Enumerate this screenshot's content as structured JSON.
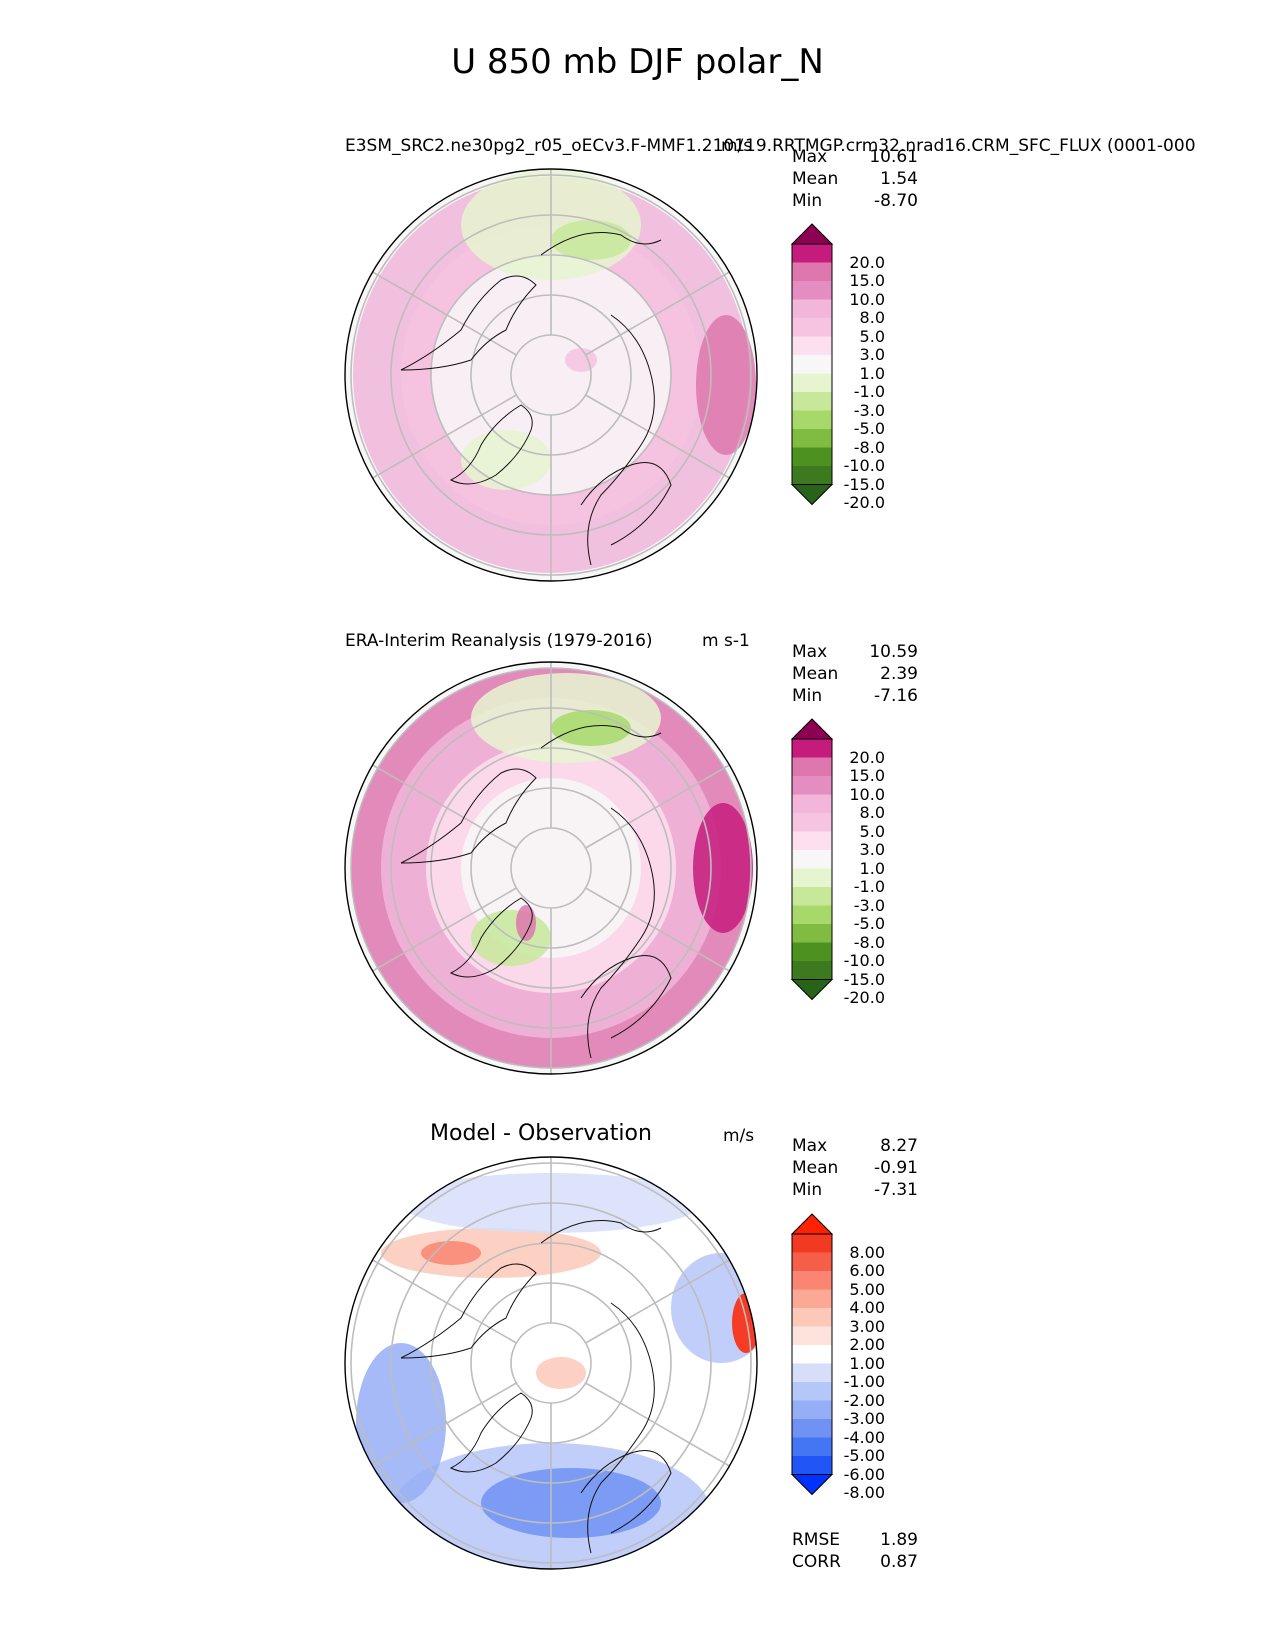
{
  "figure_title": "U 850 mb DJF polar_N",
  "panels": [
    {
      "name": "test",
      "title_left": "E3SM_SRC2.ne30pg2_r05_oECv3.F-MMF1.210119.RRTMGP.crm32.nrad16.CRM_SFC_FLUX (0001-000",
      "title_right": "m/s",
      "stats": [
        [
          "Max",
          "10.61"
        ],
        [
          "Mean",
          "1.54"
        ],
        [
          "Min",
          "-8.70"
        ]
      ],
      "colorbar_labels": [
        "20.0",
        "15.0",
        "10.0",
        "8.0",
        "5.0",
        "3.0",
        "1.0",
        "-1.0",
        "-3.0",
        "-5.0",
        "-8.0",
        "-10.0",
        "-15.0",
        "-20.0"
      ],
      "colorbar_colors": [
        "#8e0152",
        "#c51b7d",
        "#de77ae",
        "#f1b6da",
        "#fde0ef",
        "#f7f7f7",
        "#e6f5d0",
        "#b8e186",
        "#7fbc41",
        "#4d9221",
        "#276419"
      ]
    },
    {
      "name": "reference",
      "title_left": "ERA-Interim Reanalysis (1979-2016)",
      "title_right": "m s-1",
      "stats": [
        [
          "Max",
          "10.59"
        ],
        [
          "Mean",
          "2.39"
        ],
        [
          "Min",
          "-7.16"
        ]
      ],
      "colorbar_labels": [
        "20.0",
        "15.0",
        "10.0",
        "8.0",
        "5.0",
        "3.0",
        "1.0",
        "-1.0",
        "-3.0",
        "-5.0",
        "-8.0",
        "-10.0",
        "-15.0",
        "-20.0"
      ]
    },
    {
      "name": "difference",
      "title_center": "Model - Observation",
      "title_right": "m/s",
      "stats": [
        [
          "Max",
          "8.27"
        ],
        [
          "Mean",
          "-0.91"
        ],
        [
          "Min",
          "-7.31"
        ]
      ],
      "colorbar_labels": [
        "8.00",
        "6.00",
        "5.00",
        "4.00",
        "3.00",
        "2.00",
        "1.00",
        "-1.00",
        "-2.00",
        "-3.00",
        "-4.00",
        "-5.00",
        "-6.00",
        "-8.00"
      ],
      "bottom_stats": [
        [
          "RMSE",
          "1.89"
        ],
        [
          "CORR",
          "0.87"
        ]
      ]
    }
  ],
  "chart_data": [
    {
      "type": "heatmap",
      "title": "E3SM_SRC2.ne30pg2_r05_oECv3.F-MMF1.210119.RRTMGP.crm32.nrad16.CRM_SFC_FLUX (0001-000",
      "projection": "north polar stereographic",
      "units": "m/s",
      "max": 10.61,
      "mean": 1.54,
      "min": -8.7,
      "levels": [
        -20,
        -15,
        -10,
        -8,
        -5,
        -3,
        -1,
        1,
        3,
        5,
        8,
        10,
        15,
        20
      ]
    },
    {
      "type": "heatmap",
      "title": "ERA-Interim Reanalysis (1979-2016)",
      "projection": "north polar stereographic",
      "units": "m s-1",
      "max": 10.59,
      "mean": 2.39,
      "min": -7.16,
      "levels": [
        -20,
        -15,
        -10,
        -8,
        -5,
        -3,
        -1,
        1,
        3,
        5,
        8,
        10,
        15,
        20
      ]
    },
    {
      "type": "heatmap",
      "title": "Model - Observation",
      "projection": "north polar stereographic",
      "units": "m/s",
      "max": 8.27,
      "mean": -0.91,
      "min": -7.31,
      "rmse": 1.89,
      "corr": 0.87,
      "levels": [
        -8,
        -6,
        -5,
        -4,
        -3,
        -2,
        -1,
        1,
        2,
        3,
        4,
        5,
        6,
        8
      ]
    }
  ]
}
